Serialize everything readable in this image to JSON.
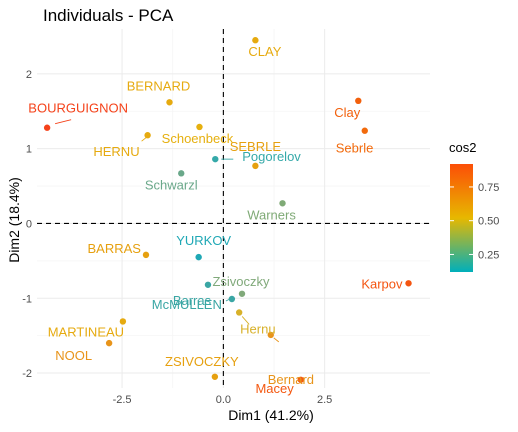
{
  "chart_data": {
    "type": "scatter",
    "title": "Individuals - PCA",
    "xlabel": "Dim1 (41.2%)",
    "ylabel": "Dim2 (18.4%)",
    "xlim": [
      -4.6,
      5.1
    ],
    "ylim": [
      -2.2,
      2.6
    ],
    "x_ticks": [
      "-2.5",
      "0.0",
      "2.5"
    ],
    "y_ticks": [
      "-2",
      "-1",
      "0",
      "1",
      "2"
    ],
    "x_tick_values": [
      -2.5,
      0.0,
      2.5
    ],
    "y_tick_values": [
      -2,
      -1,
      0,
      1,
      2
    ],
    "grid": true,
    "reference_lines": [
      {
        "axis": "x",
        "value": 0,
        "style": "dashed"
      },
      {
        "axis": "y",
        "value": 0,
        "style": "dashed"
      }
    ],
    "legend": {
      "title": "cos2",
      "labels": [
        "0.75",
        "0.50",
        "0.25"
      ],
      "label_values": [
        0.75,
        0.5,
        0.25
      ],
      "range": [
        0.12,
        0.92
      ],
      "colors": [
        "#00AFBB",
        "#E7B800",
        "#FC4E07"
      ],
      "position": "right"
    },
    "points": [
      {
        "label": "SEBRLE",
        "x": 0.79,
        "y": 0.77,
        "cos2": 0.58,
        "color": "#E6A00F",
        "anchor": "middle"
      },
      {
        "label": "CLAY",
        "x": 0.79,
        "y": 2.45,
        "cos2": 0.56,
        "color": "#E6AA0F",
        "anchor": "start"
      },
      {
        "label": "BERNARD",
        "x": -1.33,
        "y": 1.62,
        "cos2": 0.56,
        "color": "#E6AA0F",
        "anchor": "middle"
      },
      {
        "label": "YURKOV",
        "x": -0.61,
        "y": -0.45,
        "cos2": 0.15,
        "color": "#1FA8B5",
        "anchor": "middle"
      },
      {
        "label": "ZSIVOCZKY",
        "x": -0.21,
        "y": -2.05,
        "cos2": 0.58,
        "color": "#E6A00F",
        "anchor": "middle"
      },
      {
        "label": "McMULLEN",
        "x": 0.21,
        "y": -1.01,
        "cos2": 0.18,
        "color": "#3AA6A4",
        "anchor": "end"
      },
      {
        "label": "MARTINEAU",
        "x": -2.48,
        "y": -1.31,
        "cos2": 0.56,
        "color": "#E6AA0F",
        "anchor": "middle"
      },
      {
        "label": "HERNU",
        "x": -1.87,
        "y": 1.18,
        "cos2": 0.56,
        "color": "#E6AA0F",
        "anchor": "end"
      },
      {
        "label": "BARRAS",
        "x": -1.91,
        "y": -0.42,
        "cos2": 0.58,
        "color": "#E6A00F",
        "anchor": "end"
      },
      {
        "label": "NOOL",
        "x": -2.82,
        "y": -1.6,
        "cos2": 0.62,
        "color": "#E8941A",
        "anchor": "end"
      },
      {
        "label": "BOURGUIGNON",
        "x": -4.35,
        "y": 1.28,
        "cos2": 0.9,
        "color": "#F5421A",
        "anchor": "middle"
      },
      {
        "label": "Sebrle",
        "x": 3.49,
        "y": 1.24,
        "cos2": 0.78,
        "color": "#F26A0C",
        "anchor": "start"
      },
      {
        "label": "Clay",
        "x": 3.33,
        "y": 1.64,
        "cos2": 0.8,
        "color": "#F2600C",
        "anchor": "middle"
      },
      {
        "label": "Karpov",
        "x": 4.57,
        "y": -0.8,
        "cos2": 0.84,
        "color": "#F45410",
        "anchor": "end"
      },
      {
        "label": "Macey",
        "x": 1.91,
        "y": -2.09,
        "cos2": 0.83,
        "color": "#F45810",
        "anchor": "end"
      },
      {
        "label": "Warners",
        "x": 1.46,
        "y": 0.27,
        "cos2": 0.32,
        "color": "#7FAA76",
        "anchor": "middle"
      },
      {
        "label": "Zsivoczky",
        "x": 0.46,
        "y": -0.94,
        "cos2": 0.3,
        "color": "#80A97A",
        "anchor": "middle"
      },
      {
        "label": "Hernu",
        "x": 0.39,
        "y": -1.19,
        "cos2": 0.5,
        "color": "#D8B12A",
        "anchor": "start"
      },
      {
        "label": "Bernard",
        "x": 1.17,
        "y": -1.49,
        "cos2": 0.62,
        "color": "#E8941A",
        "anchor": "start"
      },
      {
        "label": "Schwarzl",
        "x": -1.04,
        "y": 0.67,
        "cos2": 0.3,
        "color": "#6AA88A",
        "anchor": "middle"
      },
      {
        "label": "Pogorelov",
        "x": -0.2,
        "y": 0.86,
        "cos2": 0.2,
        "color": "#35A9A9",
        "anchor": "start"
      },
      {
        "label": "Schoenbeck",
        "x": -0.59,
        "y": 1.29,
        "cos2": 0.55,
        "color": "#E6B00F",
        "anchor": "middle"
      },
      {
        "label": "Barras",
        "x": -0.38,
        "y": -0.82,
        "cos2": 0.18,
        "color": "#3AA6A4",
        "anchor": "middle"
      }
    ]
  }
}
